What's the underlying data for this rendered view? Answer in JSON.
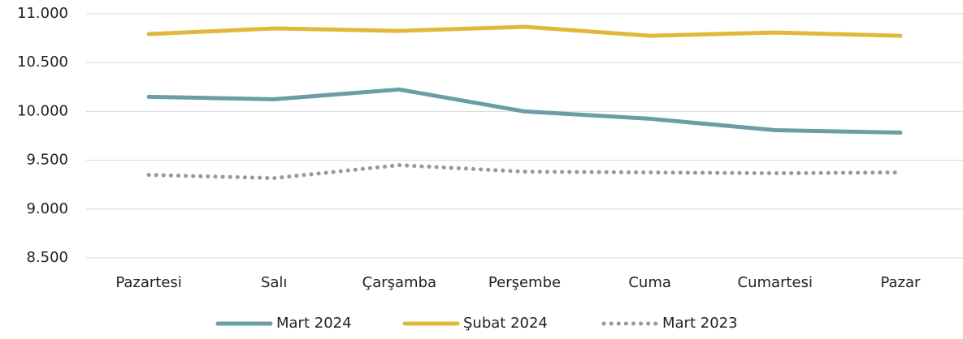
{
  "chart_data": {
    "type": "line",
    "categories": [
      "Pazartesi",
      "Salı",
      "Çarşamba",
      "Perşembe",
      "Cuma",
      "Cumartesi",
      "Pazar"
    ],
    "series": [
      {
        "name": "Mart 2024",
        "color": "#6a9ea4",
        "style": "solid",
        "values": [
          10150,
          10125,
          10225,
          10000,
          9925,
          9808,
          9783
        ]
      },
      {
        "name": "Şubat 2024",
        "color": "#e0b93a",
        "style": "solid",
        "values": [
          10792,
          10850,
          10825,
          10867,
          10775,
          10808,
          10775
        ]
      },
      {
        "name": "Mart 2023",
        "color": "#999999",
        "style": "dotted",
        "values": [
          9350,
          9317,
          9450,
          9383,
          9375,
          9367,
          9375
        ]
      }
    ],
    "ylim": [
      8500,
      11000
    ],
    "yticks": [
      {
        "value": 8500,
        "label": "8.500"
      },
      {
        "value": 9000,
        "label": "9.000"
      },
      {
        "value": 9500,
        "label": "9.500"
      },
      {
        "value": 10000,
        "label": "10.000"
      },
      {
        "value": 10500,
        "label": "10.500"
      },
      {
        "value": 11000,
        "label": "11.000"
      }
    ],
    "grid": true,
    "legend": "bottom"
  }
}
